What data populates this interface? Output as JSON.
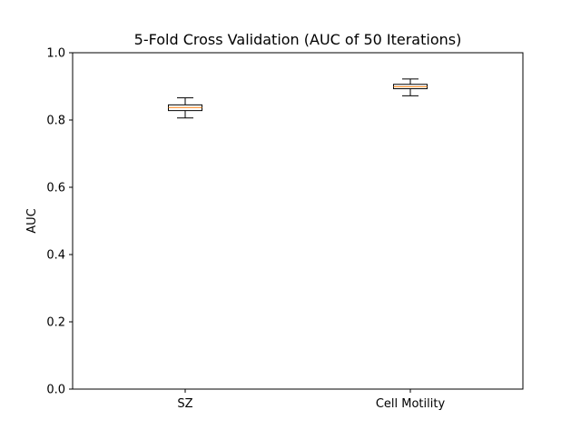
{
  "chart_data": {
    "type": "box",
    "title": "5-Fold Cross Validation (AUC of 50 Iterations)",
    "xlabel": "",
    "ylabel": "AUC",
    "ylim": [
      0,
      1
    ],
    "yticks": [
      "0.0",
      "0.2",
      "0.4",
      "0.6",
      "0.8",
      "1.0"
    ],
    "grid": false,
    "categories": [
      "SZ",
      "Cell Motility"
    ],
    "boxes": [
      {
        "category": "SZ",
        "whisker_low": 0.806,
        "q1": 0.828,
        "median": 0.837,
        "q3": 0.845,
        "whisker_high": 0.866
      },
      {
        "category": "Cell Motility",
        "whisker_low": 0.872,
        "q1": 0.893,
        "median": 0.899,
        "q3": 0.906,
        "whisker_high": 0.922
      }
    ],
    "colors": {
      "box_edge": "#000000",
      "median": "#ff7f0e",
      "axes": "#000000"
    }
  }
}
